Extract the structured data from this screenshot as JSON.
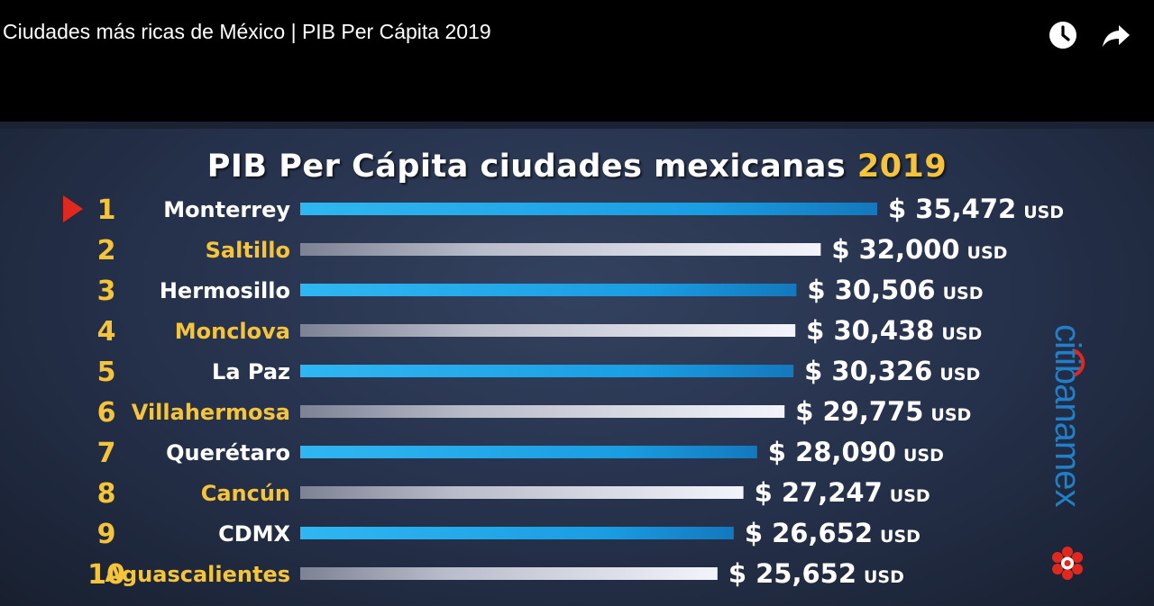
{
  "window": {
    "video_title": "Ciudades más ricas de México | PIB Per Cápita 2019",
    "icons": [
      "clock-icon",
      "share-arrow-icon"
    ]
  },
  "colors": {
    "blue_bar": "#19a6e8",
    "silver_bar": "#dcdde8",
    "rank_gold": "#f6c43a",
    "highlight_marker": "#e0281e",
    "logo_blue": "#1f7fc8",
    "logo_red": "#e0281e"
  },
  "logo": {
    "text": "citibanamex"
  },
  "chart_data": {
    "type": "bar",
    "title": "PIB Per Cápita ciudades mexicanas",
    "title_year": "2019",
    "orientation": "horizontal",
    "value_prefix": "$",
    "unit": "USD",
    "ranks": [
      "1",
      "2",
      "3",
      "4",
      "5",
      "6",
      "7",
      "8",
      "9",
      "10"
    ],
    "categories": [
      "Monterrey",
      "Saltillo",
      "Hermosillo",
      "Monclova",
      "La Paz",
      "Villahermosa",
      "Querétaro",
      "Cancún",
      "CDMX",
      "Aguascalientes"
    ],
    "values": [
      35472,
      32000,
      30506,
      30438,
      30326,
      29775,
      28090,
      27247,
      26652,
      25652
    ],
    "value_labels": [
      "35,472",
      "32,000",
      "30,506",
      "30,438",
      "30,326",
      "29,775",
      "28,090",
      "27,247",
      "26,652",
      "25,652"
    ],
    "bar_styles": [
      "blue",
      "silver",
      "blue",
      "silver",
      "blue",
      "silver",
      "blue",
      "silver",
      "blue",
      "silver"
    ],
    "city_label_colors": [
      "#ffffff",
      "#f6c43a",
      "#ffffff",
      "#f6c43a",
      "#ffffff",
      "#f6c43a",
      "#ffffff",
      "#f6c43a",
      "#ffffff",
      "#f6c43a"
    ],
    "highlighted_rank": "1",
    "axis": "hidden",
    "grid": false,
    "legend": "none"
  }
}
